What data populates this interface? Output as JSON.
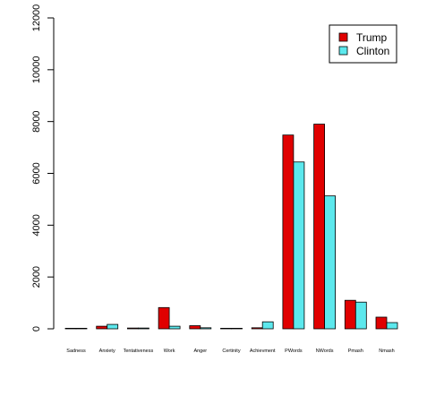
{
  "chart_data": {
    "type": "bar",
    "title": "",
    "xlabel": "",
    "ylabel": "",
    "ylim": [
      0,
      12000
    ],
    "yticks": [
      0,
      2000,
      4000,
      6000,
      8000,
      10000,
      12000
    ],
    "categories": [
      "Sadness",
      "Anxiety",
      "Tentativeness",
      "Work",
      "Anger",
      "Certinity",
      "Achievment",
      "PWords",
      "NWords",
      "Pmash",
      "Nmash"
    ],
    "series": [
      {
        "name": "Trump",
        "color": "#e00000",
        "values": [
          10,
          100,
          30,
          820,
          120,
          10,
          40,
          7480,
          7900,
          1100,
          450
        ]
      },
      {
        "name": "Clinton",
        "color": "#5ce8ed",
        "values": [
          10,
          170,
          30,
          100,
          40,
          10,
          270,
          6440,
          5130,
          1030,
          240
        ]
      }
    ],
    "legend_position": "top-right",
    "grid": false
  }
}
